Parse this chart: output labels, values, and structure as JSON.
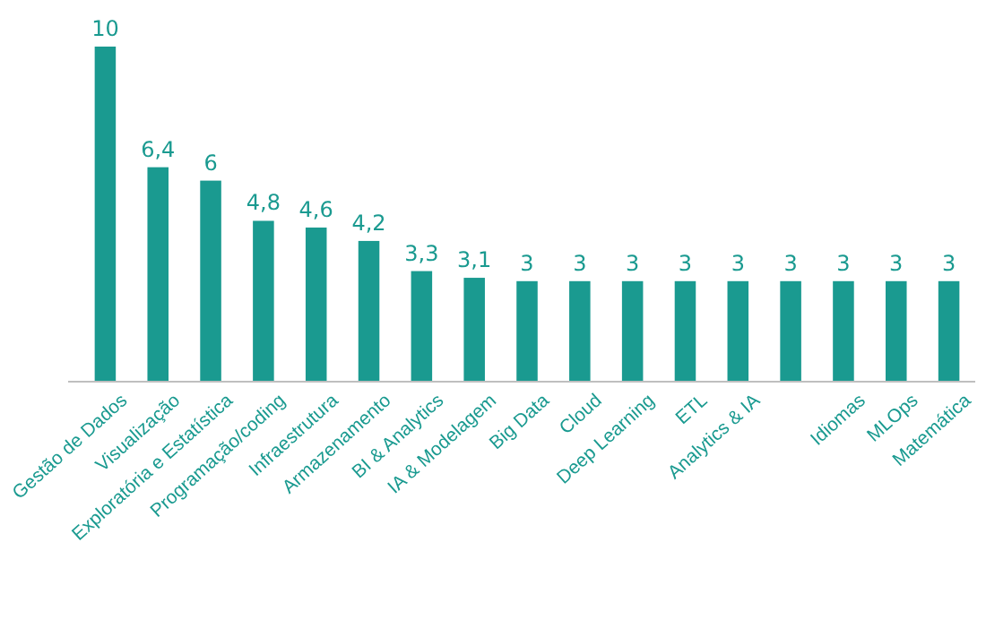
{
  "chart_data": {
    "type": "bar",
    "categories": [
      "Gestão de Dados",
      "Visualização",
      "Exploratória e Estatística",
      "Programação/coding",
      "Infraestrutura",
      "Armazenamento",
      "BI & Analytics",
      "IA & Modelagem",
      "Big Data",
      "Cloud",
      "Deep Learning",
      "ETL",
      "Analytics & IA",
      null,
      "Idiomas",
      "MLOps",
      "Matemática"
    ],
    "values": [
      10,
      6.4,
      6,
      4.8,
      4.6,
      4.2,
      3.3,
      3.1,
      3,
      3,
      3,
      3,
      3,
      3,
      3,
      3,
      3
    ],
    "value_labels": [
      "10",
      "6,4",
      "6",
      "4,8",
      "4,6",
      "4,2",
      "3,3",
      "3,1",
      "3",
      "3",
      "3",
      "3",
      "3",
      "3",
      "3",
      "3",
      "3"
    ],
    "color": "#1a9a90"
  }
}
